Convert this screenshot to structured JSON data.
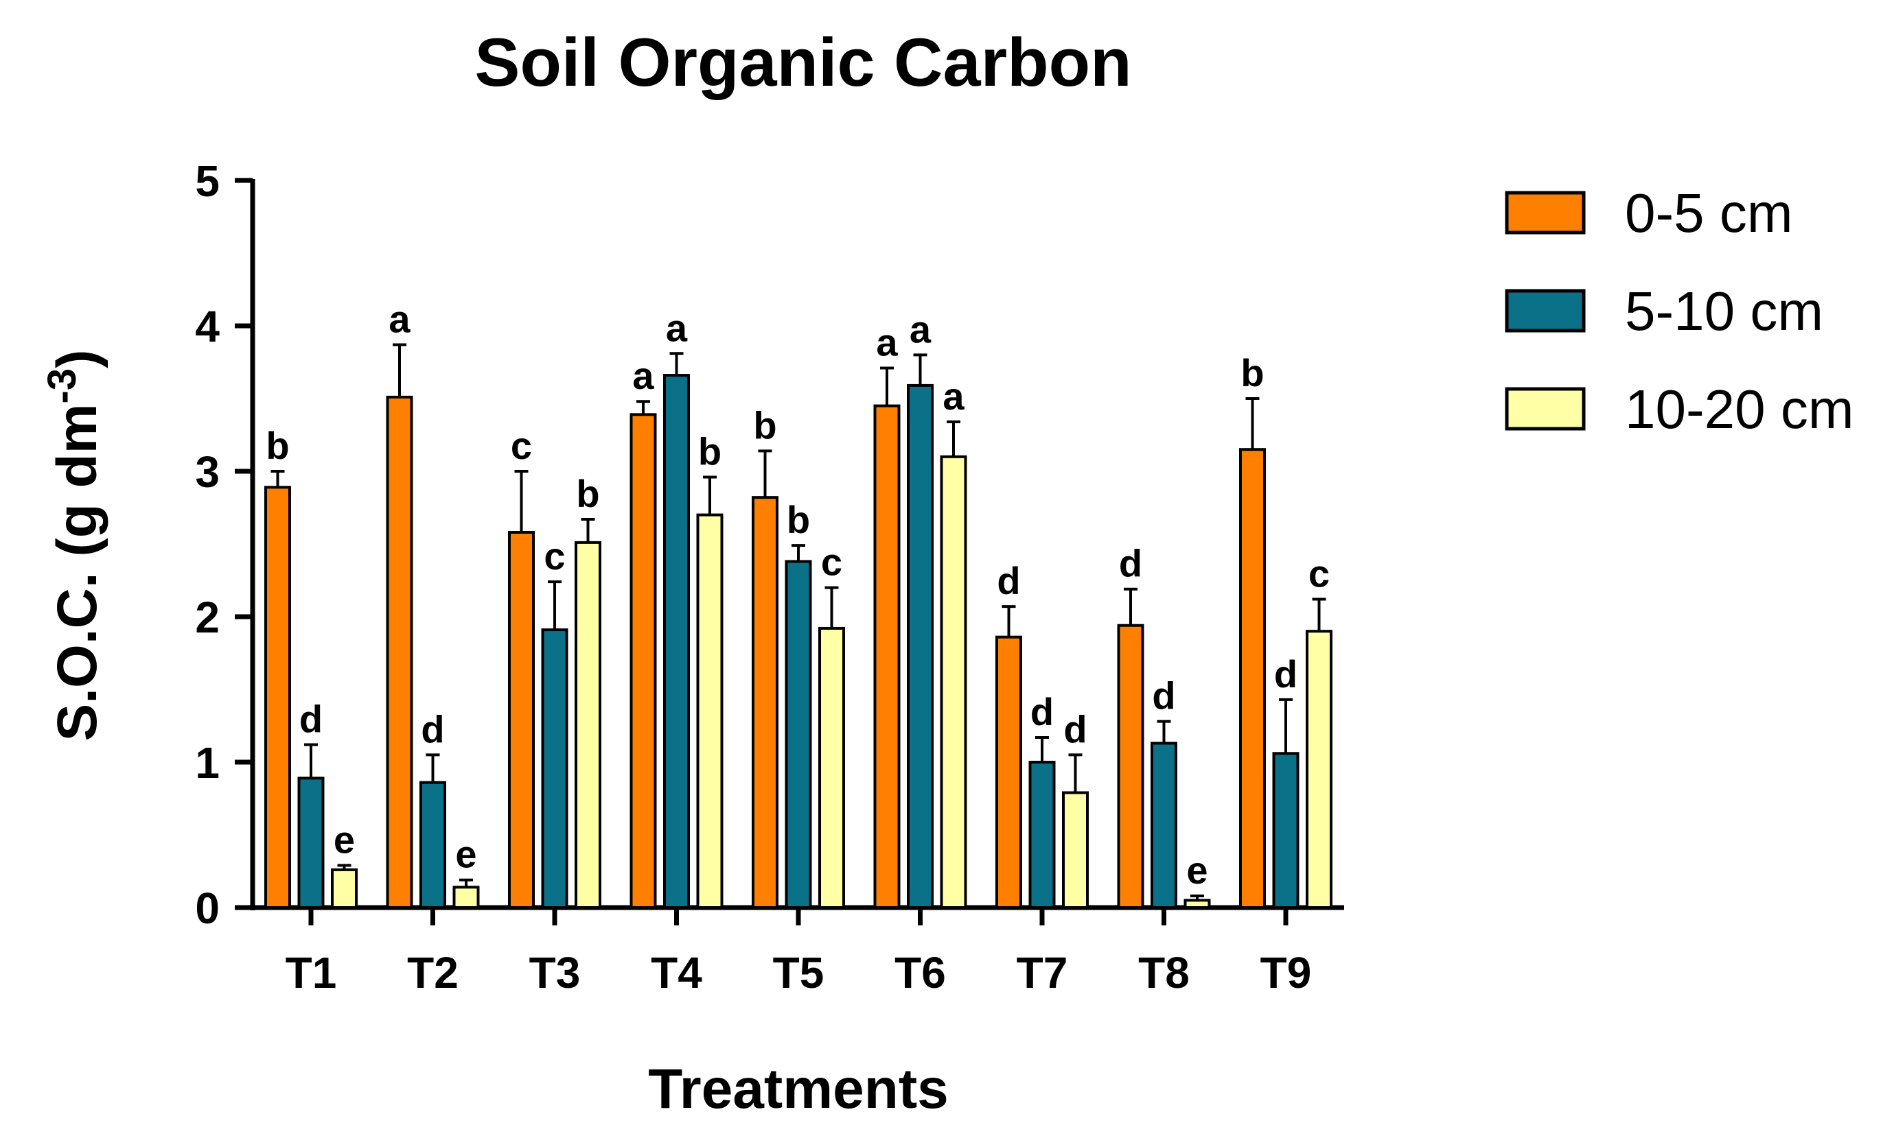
{
  "chart_data": {
    "type": "bar",
    "title": "Soil Organic Carbon",
    "xlabel": "Treatments",
    "ylabel": "S.O.C. (g dm",
    "ylabel_superscript": "-3",
    "ylabel_suffix": ")",
    "ylim": [
      0,
      5
    ],
    "yticks": [
      "0",
      "1",
      "2",
      "3",
      "4",
      "5"
    ],
    "categories": [
      "T1",
      "T2",
      "T3",
      "T4",
      "T5",
      "T6",
      "T7",
      "T8",
      "T9"
    ],
    "legend_position": "right",
    "series": [
      {
        "name": "0-5 cm",
        "color": "#FF7F00",
        "values": [
          2.89,
          3.51,
          2.58,
          3.39,
          2.82,
          3.45,
          1.86,
          1.94,
          3.15
        ],
        "errors": [
          0.11,
          0.36,
          0.42,
          0.09,
          0.32,
          0.26,
          0.21,
          0.25,
          0.35
        ],
        "letters": [
          "b",
          "a",
          "c",
          "a",
          "b",
          "a",
          "d",
          "d",
          "b"
        ]
      },
      {
        "name": "5-10 cm",
        "color": "#0B7189",
        "values": [
          0.89,
          0.86,
          1.91,
          3.66,
          2.38,
          3.59,
          1.0,
          1.13,
          1.06
        ],
        "errors": [
          0.23,
          0.19,
          0.33,
          0.15,
          0.11,
          0.21,
          0.17,
          0.15,
          0.37
        ],
        "letters": [
          "d",
          "d",
          "c",
          "a",
          "b",
          "a",
          "d",
          "d",
          "d"
        ]
      },
      {
        "name": "10-20 cm",
        "color": "#FFFFA6",
        "values": [
          0.26,
          0.14,
          2.51,
          2.7,
          1.92,
          3.1,
          0.79,
          0.05,
          1.9
        ],
        "errors": [
          0.03,
          0.05,
          0.16,
          0.26,
          0.28,
          0.24,
          0.26,
          0.03,
          0.22
        ],
        "letters": [
          "e",
          "e",
          "b",
          "b",
          "c",
          "a",
          "d",
          "e",
          "c"
        ]
      }
    ]
  }
}
